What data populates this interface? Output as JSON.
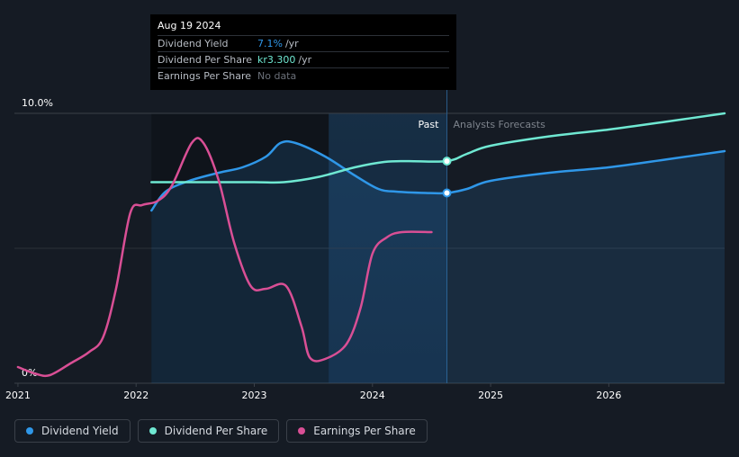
{
  "tooltip": {
    "date": "Aug 19 2024",
    "rows": [
      {
        "label": "Dividend Yield",
        "value": "7.1%",
        "unit": "/yr",
        "color": "#2f97e8"
      },
      {
        "label": "Dividend Per Share",
        "value": "kr3.300",
        "unit": "/yr",
        "color": "#6fe8d2"
      },
      {
        "label": "Earnings Per Share",
        "value": "No data",
        "unit": "",
        "color": "#6b7079"
      }
    ]
  },
  "legend": [
    {
      "label": "Dividend Yield",
      "color": "#2f97e8"
    },
    {
      "label": "Dividend Per Share",
      "color": "#6fe8d2"
    },
    {
      "label": "Earnings Per Share",
      "color": "#d94f95"
    }
  ],
  "chart_data": {
    "type": "line",
    "title": "",
    "y_axis": {
      "labels": [
        "10.0%",
        "0%"
      ],
      "range": [
        0,
        10
      ]
    },
    "x_axis": {
      "ticks": [
        2021,
        2022,
        2023,
        2024,
        2025,
        2026
      ],
      "range": [
        2020.97,
        2026.98
      ]
    },
    "past_label": "Past",
    "forecast_label": "Analysts Forecasts",
    "past_boundary": 2024.63,
    "highlight_start": 2023.63,
    "series": [
      {
        "name": "Dividend Yield",
        "color": "#2f97e8",
        "area": true,
        "points": [
          [
            2022.13,
            6.4
          ],
          [
            2022.25,
            7.1
          ],
          [
            2022.45,
            7.5
          ],
          [
            2022.7,
            7.8
          ],
          [
            2022.9,
            8.0
          ],
          [
            2023.1,
            8.4
          ],
          [
            2023.22,
            8.9
          ],
          [
            2023.35,
            8.9
          ],
          [
            2023.6,
            8.4
          ],
          [
            2023.85,
            7.7
          ],
          [
            2024.05,
            7.2
          ],
          [
            2024.2,
            7.1
          ],
          [
            2024.45,
            7.05
          ],
          [
            2024.63,
            7.05
          ],
          [
            2024.8,
            7.2
          ],
          [
            2025.0,
            7.5
          ],
          [
            2025.5,
            7.8
          ],
          [
            2026.0,
            8.0
          ],
          [
            2026.5,
            8.3
          ],
          [
            2026.98,
            8.6
          ]
        ]
      },
      {
        "name": "Dividend Per Share",
        "color": "#6fe8d2",
        "points": [
          [
            2022.13,
            7.45
          ],
          [
            2022.5,
            7.45
          ],
          [
            2023.0,
            7.45
          ],
          [
            2023.25,
            7.45
          ],
          [
            2023.55,
            7.65
          ],
          [
            2023.85,
            8.0
          ],
          [
            2024.1,
            8.2
          ],
          [
            2024.3,
            8.23
          ],
          [
            2024.63,
            8.23
          ],
          [
            2024.8,
            8.5
          ],
          [
            2025.0,
            8.8
          ],
          [
            2025.5,
            9.15
          ],
          [
            2026.0,
            9.4
          ],
          [
            2026.5,
            9.7
          ],
          [
            2026.98,
            10.0
          ]
        ]
      },
      {
        "name": "Earnings Per Share",
        "color": "#d94f95",
        "points": [
          [
            2021.0,
            0.6
          ],
          [
            2021.15,
            0.35
          ],
          [
            2021.27,
            0.3
          ],
          [
            2021.45,
            0.75
          ],
          [
            2021.6,
            1.15
          ],
          [
            2021.72,
            1.7
          ],
          [
            2021.83,
            3.5
          ],
          [
            2021.95,
            6.3
          ],
          [
            2022.05,
            6.6
          ],
          [
            2022.18,
            6.75
          ],
          [
            2022.3,
            7.3
          ],
          [
            2022.47,
            8.9
          ],
          [
            2022.57,
            8.9
          ],
          [
            2022.7,
            7.5
          ],
          [
            2022.83,
            5.2
          ],
          [
            2022.97,
            3.6
          ],
          [
            2023.1,
            3.5
          ],
          [
            2023.27,
            3.6
          ],
          [
            2023.4,
            2.1
          ],
          [
            2023.47,
            0.95
          ],
          [
            2023.6,
            0.9
          ],
          [
            2023.78,
            1.45
          ],
          [
            2023.9,
            2.8
          ],
          [
            2024.0,
            4.8
          ],
          [
            2024.12,
            5.4
          ],
          [
            2024.25,
            5.6
          ],
          [
            2024.5,
            5.6
          ]
        ]
      }
    ],
    "markers": [
      {
        "series": "Dividend Yield",
        "x": 2024.63,
        "y": 7.05
      },
      {
        "series": "Dividend Per Share",
        "x": 2024.63,
        "y": 8.23
      }
    ]
  }
}
